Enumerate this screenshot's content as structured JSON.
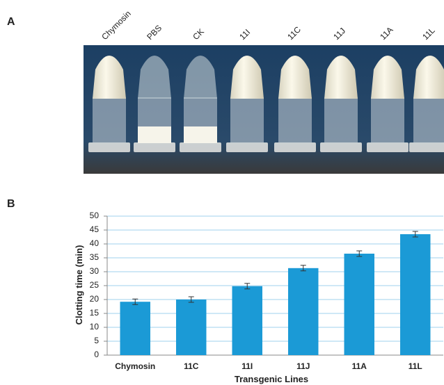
{
  "panel_a": {
    "label": "A",
    "tube_labels": [
      "Chymosin",
      "PBS",
      "CK",
      "11I",
      "11C",
      "11J",
      "11A",
      "11L"
    ]
  },
  "panel_b": {
    "label": "B"
  },
  "chart_data": {
    "type": "bar",
    "categories": [
      "Chymosin",
      "11C",
      "11I",
      "11J",
      "11A",
      "11L"
    ],
    "values": [
      19.2,
      20,
      24.8,
      31.3,
      36.5,
      43.5
    ],
    "errors": [
      1,
      1,
      1,
      1,
      1,
      1
    ],
    "color": "#1b9ad6",
    "ylim": [
      0,
      50
    ],
    "yticks": [
      0,
      5,
      10,
      15,
      20,
      25,
      30,
      35,
      40,
      45,
      50
    ],
    "ylabel": "Clotting time (min)",
    "xlabel": "Transgenic Lines",
    "grid": true
  }
}
